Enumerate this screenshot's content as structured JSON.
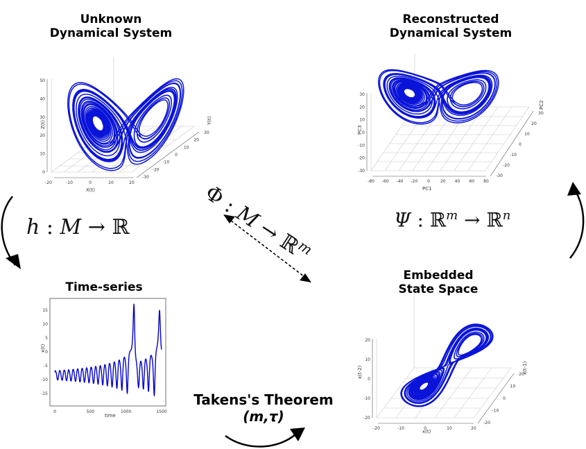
{
  "titles": {
    "unknown_line1": "Unknown",
    "unknown_line2": "Dynamical System",
    "reconstructed_line1": "Reconstructed",
    "reconstructed_line2": "Dynamical System",
    "timeseries": "Time-series",
    "embedded_line1": "Embedded",
    "embedded_line2": "State Space",
    "takens_line1": "Takens's Theorem",
    "takens_line2": "(m,τ)"
  },
  "equations": {
    "h": [
      "h",
      " : ",
      "M",
      " → ℝ"
    ],
    "phi": [
      "Φ",
      " : ",
      "M",
      " → ℝ",
      "m"
    ],
    "psi": [
      "Ψ",
      "  :  ℝ",
      "m",
      "  →  ℝ",
      "n"
    ]
  },
  "panels": {
    "unknown": {
      "xlabel": "X(t)",
      "ylabel": "Y(t)",
      "zlabel": "Z(t)",
      "xticks": [
        "-20",
        "-10",
        "0",
        "10",
        "20"
      ],
      "yticks": [
        "-30",
        "-20",
        "-10",
        "0",
        "10",
        "20",
        "30"
      ],
      "zticks": [
        "0",
        "10",
        "20",
        "30",
        "40",
        "50"
      ]
    },
    "reconstructed": {
      "xlabel": "PC1",
      "ylabel": "PC2",
      "zlabel": "PC3",
      "xticks": [
        "-80",
        "-60",
        "-40",
        "-20",
        "0",
        "20",
        "40",
        "60",
        "80"
      ],
      "yticks": [
        "-30",
        "-20",
        "-10",
        "0",
        "10",
        "20",
        "30"
      ],
      "zticks": [
        "-30",
        "-20",
        "-10",
        "0",
        "10",
        "20",
        "30"
      ]
    },
    "timeseries": {
      "xlabel": "time",
      "ylabel": "x(t)",
      "xticks": [
        "0",
        "500",
        "1000",
        "1500"
      ],
      "yticks": [
        "-15",
        "-10",
        "-5",
        "0",
        "5",
        "10",
        "15"
      ]
    },
    "embedded": {
      "xlabel": "x(t)",
      "ylabel": "x(t-1)",
      "zlabel": "x(t-2)",
      "xticks": [
        "-20",
        "-10",
        "0",
        "10",
        "20"
      ],
      "yticks": [
        "-20",
        "-10",
        "0",
        "10",
        "20"
      ],
      "zticks": [
        "-20",
        "-10",
        "0",
        "10",
        "20"
      ]
    }
  },
  "colors": {
    "curve": "#0a14d8",
    "arrow": "#000000"
  },
  "icons": {
    "arrows": [
      "curved-arrow-left-down",
      "curved-arrow-right-up",
      "curved-arrow-bottom",
      "dashed-double-arrow"
    ]
  }
}
